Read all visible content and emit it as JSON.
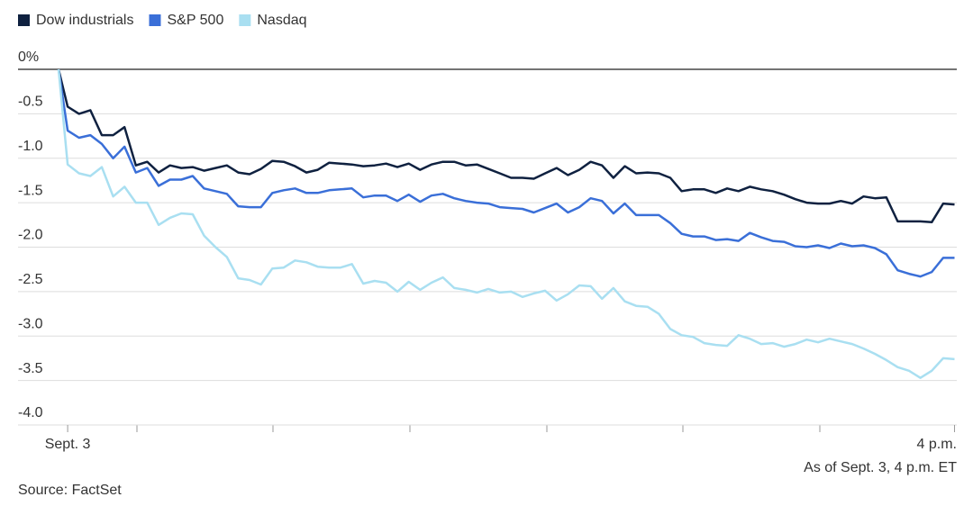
{
  "chart_data": {
    "type": "line",
    "legend": "top-left",
    "source": "Source: FactSet",
    "note": "As of Sept. 3, 4 p.m. ET",
    "x": [
      -4,
      0,
      5,
      10,
      15,
      20,
      25,
      30,
      35,
      40,
      45,
      50,
      55,
      60,
      65,
      70,
      75,
      80,
      85,
      90,
      95,
      100,
      105,
      110,
      115,
      120,
      125,
      130,
      135,
      140,
      145,
      150,
      155,
      160,
      165,
      170,
      175,
      180,
      185,
      190,
      195,
      200,
      205,
      210,
      215,
      220,
      225,
      230,
      235,
      240,
      245,
      250,
      255,
      260,
      265,
      270,
      275,
      280,
      285,
      290,
      295,
      300,
      305,
      310,
      315,
      320,
      325,
      330,
      335,
      340,
      345,
      350,
      355,
      360,
      365,
      370,
      375,
      380,
      385,
      390
    ],
    "xlim": [
      -4,
      391
    ],
    "xticks": [
      {
        "value": 0,
        "label": "Sept. 3"
      },
      {
        "value": 390,
        "label": "4 p.m."
      }
    ],
    "ylim": [
      -4,
      0
    ],
    "yticks": [
      {
        "value": 0,
        "label": "0%"
      },
      -0.5,
      {
        "value": -1,
        "label": "-1.0"
      },
      -1.5,
      {
        "value": -2,
        "label": "-2.0"
      },
      -2.5,
      {
        "value": -3,
        "label": "-3.0"
      },
      -3.5,
      {
        "value": -4,
        "label": "-4.0"
      }
    ],
    "grid": true,
    "series": [
      {
        "name": "Dow industrials",
        "color": "#0f2140",
        "values": [
          0,
          -0.42,
          -0.5,
          -0.46,
          -0.74,
          -0.74,
          -0.65,
          -1.08,
          -1.04,
          -1.16,
          -1.08,
          -1.11,
          -1.1,
          -1.14,
          -1.11,
          -1.08,
          -1.16,
          -1.18,
          -1.12,
          -1.03,
          -1.04,
          -1.09,
          -1.16,
          -1.13,
          -1.05,
          -1.06,
          -1.07,
          -1.09,
          -1.08,
          -1.06,
          -1.1,
          -1.06,
          -1.13,
          -1.07,
          -1.04,
          -1.04,
          -1.08,
          -1.07,
          -1.12,
          -1.17,
          -1.22,
          -1.22,
          -1.23,
          -1.17,
          -1.11,
          -1.19,
          -1.13,
          -1.04,
          -1.08,
          -1.22,
          -1.09,
          -1.17,
          -1.16,
          -1.17,
          -1.22,
          -1.37,
          -1.35,
          -1.35,
          -1.39,
          -1.34,
          -1.37,
          -1.32,
          -1.35,
          -1.37,
          -1.41,
          -1.46,
          -1.5,
          -1.51,
          -1.51,
          -1.48,
          -1.51,
          -1.43,
          -1.45,
          -1.44,
          -1.71,
          -1.71,
          -1.71,
          -1.72,
          -1.51,
          -1.52
        ]
      },
      {
        "name": "S&P 500",
        "color": "#3a6fd8",
        "values": [
          0,
          -0.69,
          -0.77,
          -0.74,
          -0.84,
          -1.0,
          -0.87,
          -1.16,
          -1.11,
          -1.31,
          -1.24,
          -1.24,
          -1.2,
          -1.34,
          -1.37,
          -1.4,
          -1.54,
          -1.55,
          -1.55,
          -1.39,
          -1.36,
          -1.34,
          -1.39,
          -1.39,
          -1.36,
          -1.35,
          -1.34,
          -1.44,
          -1.42,
          -1.42,
          -1.48,
          -1.41,
          -1.49,
          -1.42,
          -1.4,
          -1.45,
          -1.48,
          -1.5,
          -1.51,
          -1.55,
          -1.56,
          -1.57,
          -1.61,
          -1.56,
          -1.51,
          -1.61,
          -1.55,
          -1.45,
          -1.48,
          -1.62,
          -1.51,
          -1.64,
          -1.64,
          -1.64,
          -1.73,
          -1.85,
          -1.88,
          -1.88,
          -1.92,
          -1.91,
          -1.93,
          -1.84,
          -1.89,
          -1.93,
          -1.94,
          -1.99,
          -2.0,
          -1.98,
          -2.01,
          -1.96,
          -1.99,
          -1.98,
          -2.01,
          -2.08,
          -2.26,
          -2.3,
          -2.33,
          -2.28,
          -2.12,
          -2.12
        ]
      },
      {
        "name": "Nasdaq",
        "color": "#a9dff1",
        "values": [
          0,
          -1.07,
          -1.17,
          -1.2,
          -1.1,
          -1.43,
          -1.32,
          -1.5,
          -1.5,
          -1.75,
          -1.67,
          -1.62,
          -1.63,
          -1.87,
          -2.0,
          -2.11,
          -2.35,
          -2.37,
          -2.42,
          -2.24,
          -2.23,
          -2.15,
          -2.17,
          -2.22,
          -2.23,
          -2.23,
          -2.19,
          -2.41,
          -2.38,
          -2.4,
          -2.5,
          -2.39,
          -2.48,
          -2.4,
          -2.34,
          -2.46,
          -2.48,
          -2.51,
          -2.47,
          -2.51,
          -2.5,
          -2.56,
          -2.52,
          -2.49,
          -2.6,
          -2.53,
          -2.43,
          -2.44,
          -2.58,
          -2.46,
          -2.61,
          -2.66,
          -2.67,
          -2.75,
          -2.92,
          -2.99,
          -3.01,
          -3.08,
          -3.1,
          -3.11,
          -2.99,
          -3.03,
          -3.09,
          -3.08,
          -3.12,
          -3.09,
          -3.04,
          -3.07,
          -3.03,
          -3.06,
          -3.09,
          -3.14,
          -3.2,
          -3.27,
          -3.35,
          -3.39,
          -3.47,
          -3.39,
          -3.25,
          -3.26
        ]
      }
    ]
  }
}
